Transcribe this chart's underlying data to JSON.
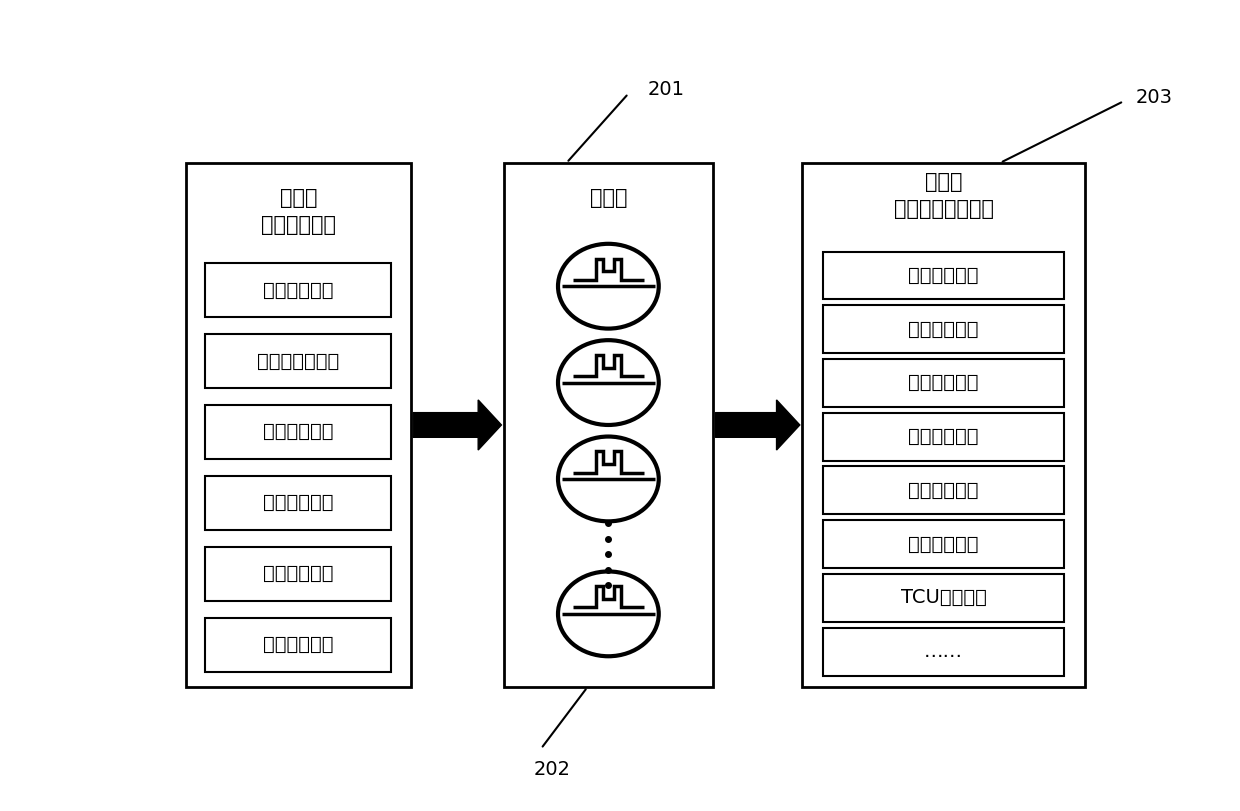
{
  "figsize": [
    12.4,
    8.11
  ],
  "dpi": 100,
  "bg_color": "#ffffff",
  "input_layer_title": "输入层",
  "input_layer_subtitle": "（数据采集）",
  "hidden_layer_title": "隐含层",
  "output_layer_title": "输出层",
  "output_layer_subtitle": "（故障诊断结果）",
  "input_boxes": [
    "牵引控制单元",
    "四象限整流单元",
    "主逆变器单元",
    "直流回路单元",
    "谐振回路单元",
    "其它单元数据"
  ],
  "output_boxes": [
    "整流模块故障",
    "正负母排放电",
    "逆变模块故障",
    "电机转子异常",
    "电机本体故障",
    "速度信号异常",
    "TCU插件异常",
    "……"
  ],
  "label_201": "201",
  "label_202": "202",
  "label_203": "203",
  "box_line_color": "#000000",
  "arrow_color": "#000000",
  "text_color": "#000000",
  "font_size_title": 15,
  "font_size_box": 14,
  "font_size_label": 14
}
